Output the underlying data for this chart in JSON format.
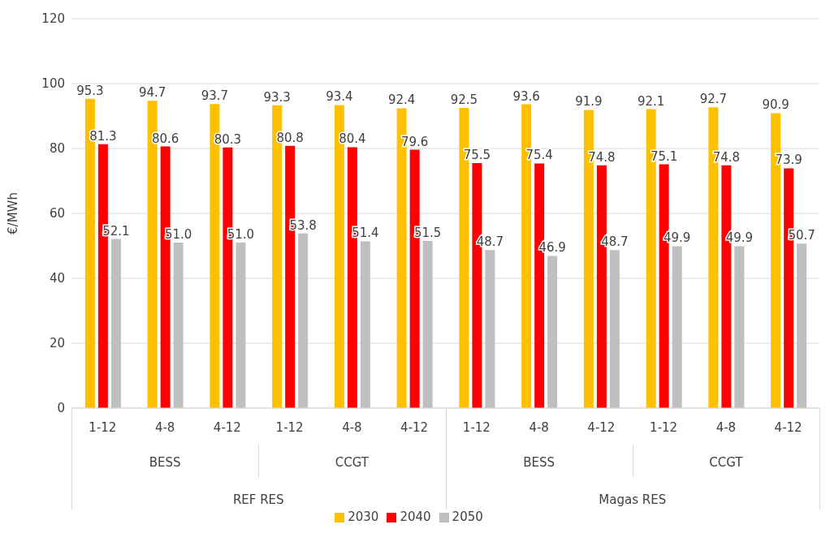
{
  "chart_data": {
    "type": "bar",
    "ylabel": "€/MWh",
    "categories": [
      "1-12",
      "4-8",
      "4-12",
      "1-12",
      "4-8",
      "4-12",
      "1-12",
      "4-8",
      "4-12",
      "1-12",
      "4-8",
      "4-12"
    ],
    "series": [
      {
        "name": "2030",
        "color": "#ffc000",
        "values": [
          95.3,
          94.7,
          93.7,
          93.3,
          93.4,
          92.4,
          92.5,
          93.6,
          91.9,
          92.1,
          92.7,
          90.9
        ],
        "value_labels": [
          "95.3",
          "94.7",
          "93.7",
          "93.3",
          "93.4",
          "92.4",
          "92.5",
          "93.6",
          "91.9",
          "92.1",
          "92.7",
          "90.9"
        ]
      },
      {
        "name": "2040",
        "color": "#ff0000",
        "values": [
          81.3,
          80.6,
          80.3,
          80.8,
          80.4,
          79.6,
          75.5,
          75.4,
          74.8,
          75.1,
          74.8,
          73.9
        ],
        "value_labels": [
          "81.3",
          "80.6",
          "80.3",
          "80.8",
          "80.4",
          "79.6",
          "75.5",
          "75.4",
          "74.8",
          "75.1",
          "74.8",
          "73.9"
        ]
      },
      {
        "name": "2050",
        "color": "#bfbfbf",
        "values": [
          52.1,
          51.0,
          51.0,
          53.8,
          51.4,
          51.5,
          48.7,
          46.9,
          48.7,
          49.9,
          49.9,
          50.7
        ],
        "value_labels": [
          "52.1",
          "51.0",
          "51.0",
          "53.8",
          "51.4",
          "51.5",
          "48.7",
          "46.9",
          "48.7",
          "49.9",
          "49.9",
          "50.7"
        ]
      }
    ],
    "annotations": [
      "BESS",
      "CCGT",
      "BESS",
      "CCGT",
      "REF RES",
      "Magas RES"
    ],
    "ylim": [
      0,
      120
    ],
    "yticks": [
      0,
      20,
      40,
      60,
      80,
      100,
      120
    ],
    "grid": "y",
    "legend": "bottom"
  }
}
